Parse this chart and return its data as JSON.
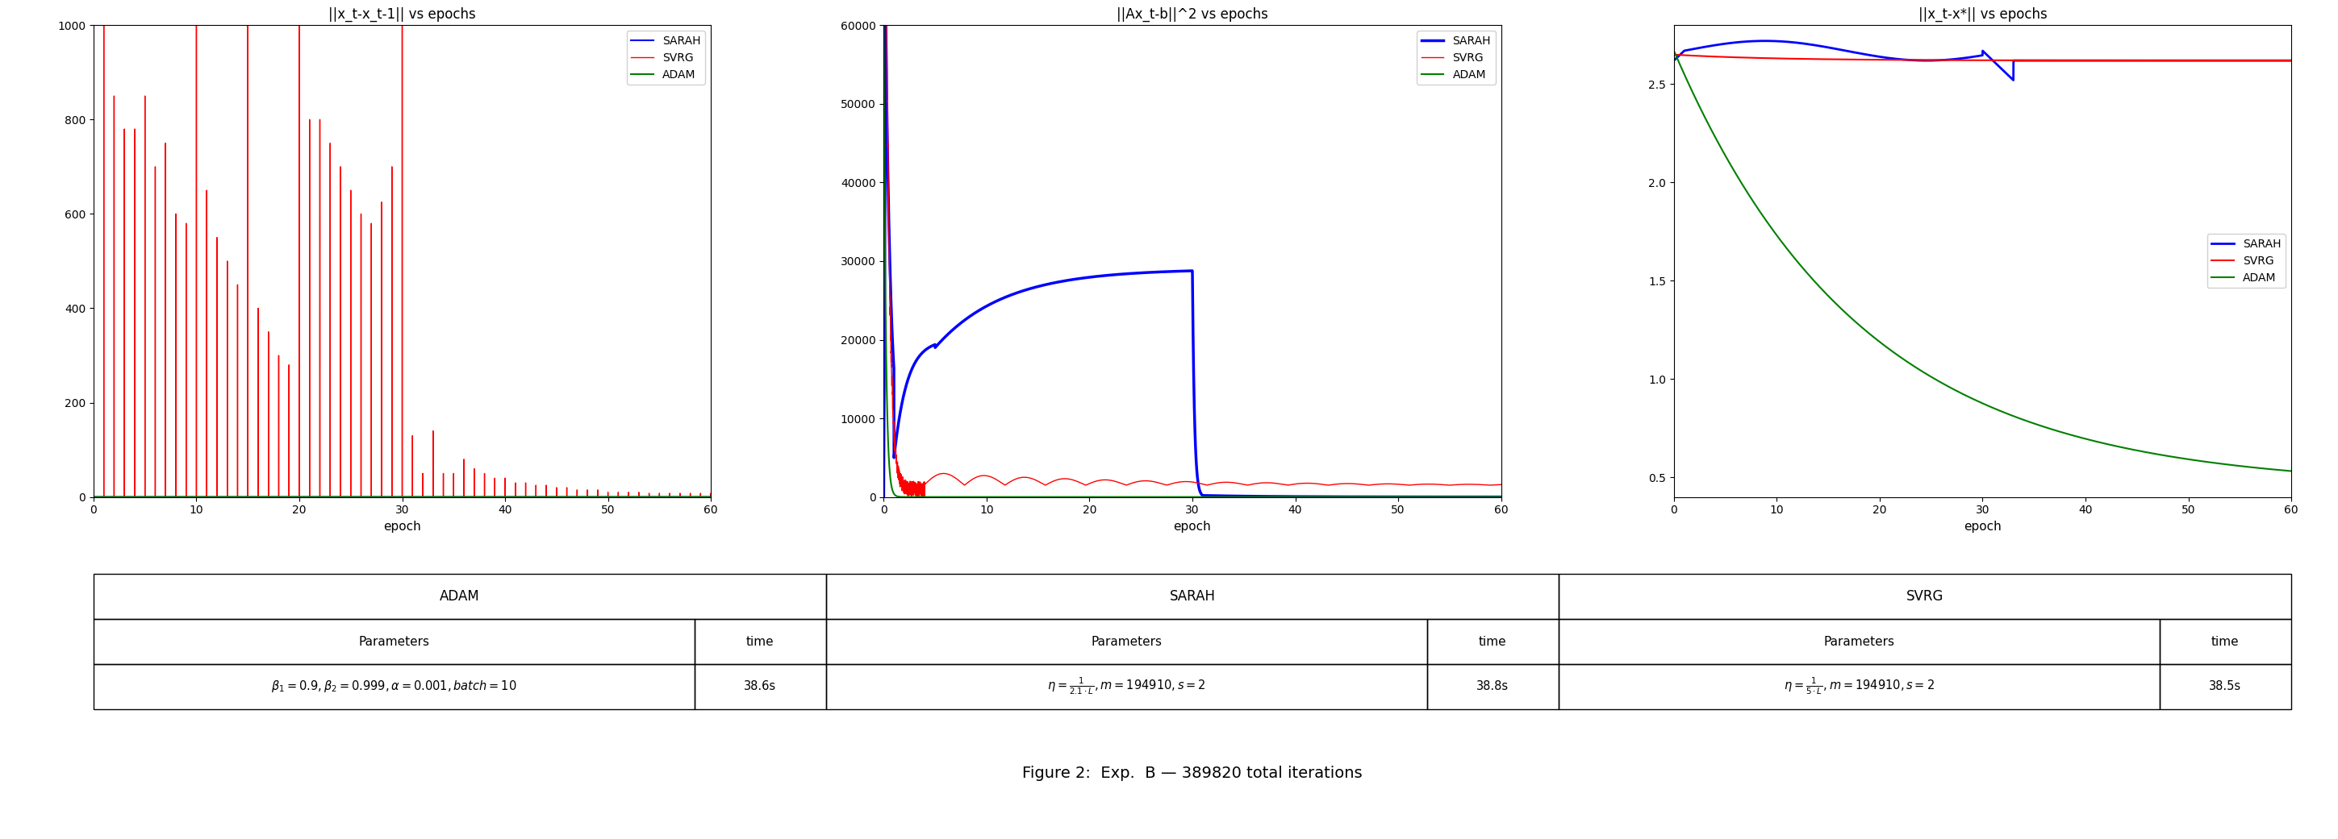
{
  "fig_width": 28.98,
  "fig_height": 10.41,
  "plot1_title": "||x_t-x_t-1|| vs epochs",
  "plot2_title": "||Ax_t-b||^2 vs epochs",
  "plot3_title": "||x_t-x*|| vs epochs",
  "xlabel": "epoch",
  "plot1_ylim": [
    0,
    1000
  ],
  "plot2_ylim": [
    0,
    60000
  ],
  "plot3_ylim": [
    0.4,
    2.8
  ],
  "plot1_xlim": [
    0,
    60
  ],
  "plot2_xlim": [
    0,
    60
  ],
  "plot3_xlim": [
    0,
    60
  ],
  "colors": {
    "SARAH": "#0000ff",
    "SVRG": "#ff0000",
    "ADAM": "#008000"
  },
  "caption": "Figure 2:  Exp.  B — 389820 total iterations",
  "table_headers": [
    "ADAM",
    "SARAH",
    "SVRG"
  ]
}
